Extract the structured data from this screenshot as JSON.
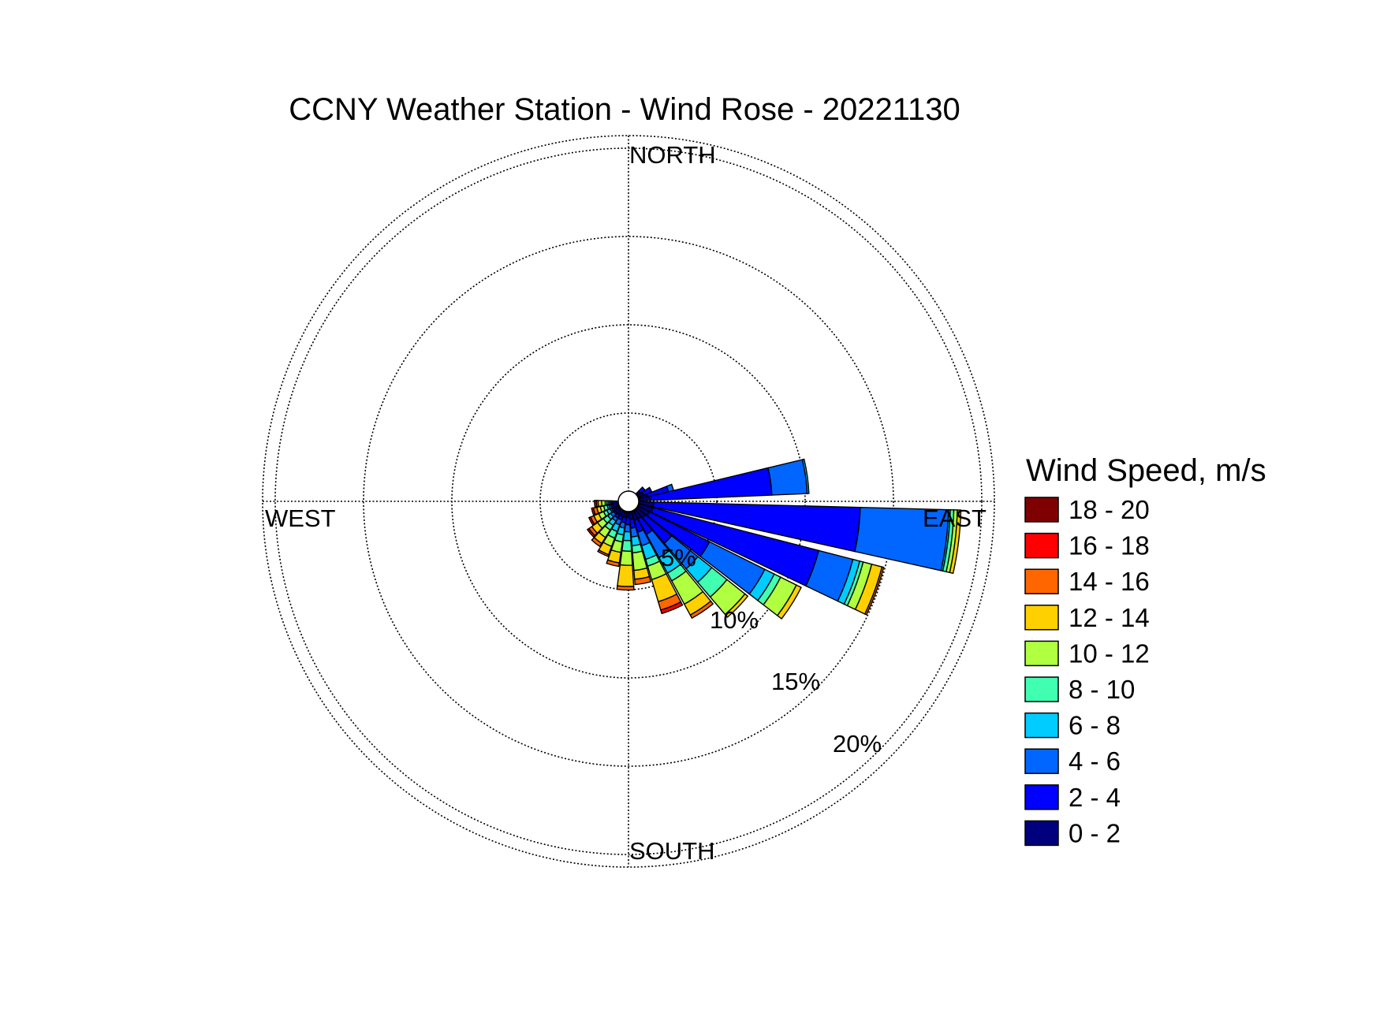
{
  "chart_data": {
    "type": "wind-rose",
    "title": "CCNY Weather Station - Wind Rose - 20221130",
    "directions": {
      "north": "NORTH",
      "south": "SOUTH",
      "east": "EAST",
      "west": "WEST"
    },
    "radial_labels": [
      "5%",
      "10%",
      "15%",
      "20%"
    ],
    "radial_max": 20,
    "grid": true,
    "legend_title": "Wind Speed, m/s",
    "legend_position": "right",
    "bins": [
      {
        "label": "0 - 2",
        "color": "#00007f"
      },
      {
        "label": "2 - 4",
        "color": "#0000ff"
      },
      {
        "label": "4 - 6",
        "color": "#0066ff"
      },
      {
        "label": "6 - 8",
        "color": "#00ccff"
      },
      {
        "label": "8 - 10",
        "color": "#40ffb0"
      },
      {
        "label": "10 - 12",
        "color": "#b0ff40"
      },
      {
        "label": "12 - 14",
        "color": "#ffd000"
      },
      {
        "label": "14 - 16",
        "color": "#ff6600"
      },
      {
        "label": "16 - 18",
        "color": "#ff0000"
      },
      {
        "label": "18 - 20",
        "color": "#7f0000"
      }
    ],
    "sectors": [
      {
        "direction_deg": 50,
        "cumulative_percent": [
          0.2,
          0.5
        ]
      },
      {
        "direction_deg": 62,
        "cumulative_percent": [
          0.3,
          0.8
        ]
      },
      {
        "direction_deg": 74,
        "cumulative_percent": [
          0.5,
          1.7,
          2.0
        ]
      },
      {
        "direction_deg": 82,
        "cumulative_percent": [
          0.6,
          7.5,
          9.5,
          9.6
        ]
      },
      {
        "direction_deg": 97,
        "cumulative_percent": [
          0.8,
          12.5,
          17.5,
          17.6,
          17.8,
          18.0,
          18.2
        ]
      },
      {
        "direction_deg": 110,
        "cumulative_percent": [
          0.8,
          10.5,
          12.5,
          12.9,
          13.1,
          13.6,
          14.2,
          14.3
        ]
      },
      {
        "direction_deg": 122,
        "cumulative_percent": [
          0.7,
          4.5,
          8.0,
          8.6,
          9.0,
          10.0,
          10.3
        ]
      },
      {
        "direction_deg": 134,
        "cumulative_percent": [
          0.6,
          2.5,
          4.4,
          5.4,
          6.5,
          7.8,
          8.0
        ]
      },
      {
        "direction_deg": 146,
        "cumulative_percent": [
          0.5,
          1.5,
          3.0,
          4.0,
          4.5,
          6.0,
          6.7,
          6.9
        ]
      },
      {
        "direction_deg": 158,
        "cumulative_percent": [
          0.5,
          1.2,
          2.0,
          2.8,
          3.2,
          4.0,
          5.3,
          5.8,
          6.0
        ]
      },
      {
        "direction_deg": 170,
        "cumulative_percent": [
          0.4,
          0.9,
          1.4,
          1.9,
          2.3,
          3.3,
          3.8,
          4.1
        ]
      },
      {
        "direction_deg": 182,
        "cumulative_percent": [
          0.3,
          0.7,
          1.1,
          1.6,
          2.2,
          3.0,
          4.2,
          4.4
        ]
      },
      {
        "direction_deg": 194,
        "cumulative_percent": [
          0.3,
          0.6,
          0.9,
          1.3,
          1.7,
          2.3,
          2.9,
          3.1
        ]
      },
      {
        "direction_deg": 206,
        "cumulative_percent": [
          0.3,
          0.5,
          0.8,
          1.2,
          1.6,
          2.1,
          2.6,
          2.7
        ]
      },
      {
        "direction_deg": 218,
        "cumulative_percent": [
          0.3,
          0.5,
          0.7,
          1.0,
          1.3,
          1.8,
          2.2,
          2.4
        ]
      },
      {
        "direction_deg": 230,
        "cumulative_percent": [
          0.3,
          0.4,
          0.6,
          0.8,
          1.1,
          1.5,
          1.9,
          2.1,
          2.2
        ]
      },
      {
        "direction_deg": 242,
        "cumulative_percent": [
          0.3,
          0.4,
          0.5,
          0.7,
          0.9,
          1.2,
          1.5,
          1.7,
          1.8
        ]
      },
      {
        "direction_deg": 254,
        "cumulative_percent": [
          0.3,
          0.4,
          0.5,
          0.6,
          0.8,
          1.0,
          1.2,
          1.4,
          1.5
        ]
      },
      {
        "direction_deg": 266,
        "cumulative_percent": [
          0.3,
          0.4,
          0.5,
          0.6,
          0.7,
          0.9,
          1.1,
          1.2,
          1.3
        ]
      }
    ]
  }
}
